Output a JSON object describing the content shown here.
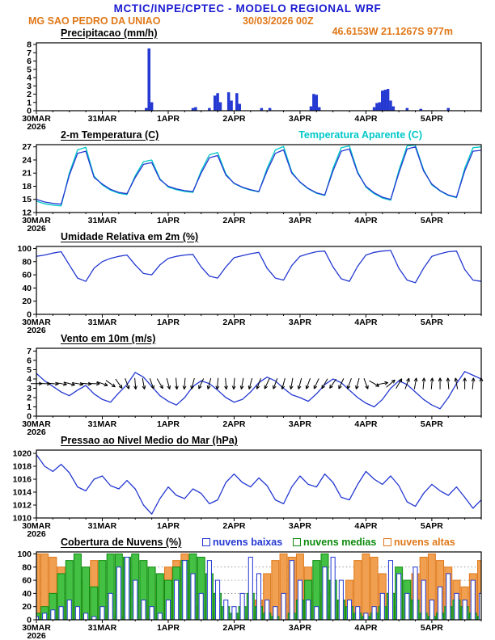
{
  "header": {
    "title": "MCTIC/INPE/CPTEC - MODELO REGIONAL WRF",
    "station": "MG SAO PEDRO DA UNIAO",
    "run_datetime": "30/03/2026 00Z",
    "location": "46.6153W 21.1267S 977m",
    "colors": {
      "title": "#1b1bd1",
      "accent": "#e07818"
    }
  },
  "time_axis": {
    "tick_labels": [
      "30MAR",
      "31MAR",
      "1APR",
      "2APR",
      "3APR",
      "4APR",
      "5APR"
    ],
    "year_label": "2026",
    "hours_total": 162,
    "step_hours": 3
  },
  "chart_data": [
    {
      "id": "precip",
      "type": "bar",
      "title": "Precipitacao (mm/h)",
      "ylabel": "mm/h",
      "ylim": [
        0,
        8.2
      ],
      "yticks": [
        0,
        1,
        2,
        3,
        4,
        5,
        6,
        7,
        8
      ],
      "bar_color": "#2438d2",
      "hours": [
        40,
        41,
        42,
        57,
        58,
        63,
        65,
        66,
        67,
        70,
        71,
        73,
        74,
        82,
        85,
        100,
        101,
        102,
        103,
        123,
        124,
        125,
        126,
        127,
        128,
        129,
        130,
        135,
        140,
        150
      ],
      "values": [
        0.3,
        7.5,
        1.0,
        0.3,
        0.4,
        0.3,
        1.8,
        2.1,
        1.0,
        2.2,
        1.2,
        2.1,
        0.8,
        0.3,
        0.3,
        0.5,
        2.0,
        1.9,
        0.4,
        0.4,
        0.9,
        1.0,
        2.4,
        2.5,
        2.6,
        1.2,
        0.5,
        0.3,
        0.2,
        0.3
      ]
    },
    {
      "id": "temp",
      "type": "line",
      "title": "2-m Temperatura (C)",
      "legend": {
        "label": "Temperatura Aparente (C)",
        "color": "#00c8c8"
      },
      "ylim": [
        12,
        27.5
      ],
      "yticks": [
        12,
        15,
        18,
        21,
        24,
        27
      ],
      "series": [
        {
          "name": "2-m Temperatura (C)",
          "color": "#2438d2",
          "values": [
            15.0,
            14.4,
            14.1,
            13.9,
            20.5,
            25.5,
            26.0,
            20.0,
            18.5,
            17.3,
            16.6,
            16.3,
            20.0,
            23.0,
            23.4,
            19.5,
            18.0,
            17.4,
            17.0,
            16.8,
            21.0,
            24.5,
            25.0,
            20.5,
            18.7,
            17.8,
            17.2,
            16.8,
            21.5,
            25.5,
            26.3,
            21.0,
            19.0,
            17.5,
            16.5,
            16.0,
            21.5,
            26.0,
            26.5,
            21.0,
            18.0,
            16.5,
            15.5,
            15.0,
            21.0,
            26.5,
            27.0,
            21.5,
            18.5,
            17.0,
            16.0,
            15.5,
            21.5,
            26.0,
            26.2
          ]
        },
        {
          "name": "Temperatura Aparente (C)",
          "color": "#00c8c8",
          "values": [
            14.6,
            14.0,
            13.7,
            13.5,
            21.0,
            26.3,
            26.9,
            20.3,
            18.3,
            17.1,
            16.4,
            16.1,
            20.4,
            23.6,
            24.0,
            19.7,
            17.8,
            17.2,
            16.8,
            16.6,
            21.5,
            25.2,
            25.7,
            20.8,
            18.6,
            17.7,
            17.1,
            16.7,
            22.1,
            26.3,
            27.1,
            21.3,
            18.9,
            17.4,
            16.4,
            15.9,
            22.1,
            26.8,
            27.2,
            21.3,
            17.8,
            16.3,
            15.3,
            14.8,
            21.6,
            27.2,
            27.4,
            21.8,
            18.3,
            16.9,
            15.9,
            15.4,
            22.1,
            26.8,
            27.0
          ]
        }
      ]
    },
    {
      "id": "rh",
      "type": "line",
      "title": "Umidade Relativa em 2m (%)",
      "ylim": [
        0,
        103
      ],
      "yticks": [
        0,
        20,
        40,
        60,
        80,
        100
      ],
      "series": [
        {
          "name": "Umidade Relativa",
          "color": "#2438d2",
          "values": [
            88,
            90,
            93,
            95,
            75,
            55,
            50,
            70,
            80,
            85,
            88,
            90,
            75,
            62,
            60,
            75,
            85,
            88,
            90,
            91,
            72,
            58,
            55,
            72,
            86,
            89,
            92,
            94,
            70,
            55,
            52,
            74,
            88,
            92,
            95,
            96,
            72,
            54,
            50,
            73,
            90,
            94,
            96,
            97,
            70,
            52,
            48,
            70,
            88,
            92,
            95,
            96,
            68,
            52,
            50
          ]
        }
      ]
    },
    {
      "id": "wind",
      "type": "line",
      "title": "Vento em 10m (m/s)",
      "ylim": [
        0,
        7.3
      ],
      "yticks": [
        0,
        1,
        2,
        3,
        4,
        5,
        6,
        7
      ],
      "series": [
        {
          "name": "Velocidade do vento",
          "color": "#2438d2",
          "values": [
            4.6,
            3.8,
            3.2,
            2.6,
            2.2,
            2.8,
            3.3,
            2.4,
            1.8,
            1.5,
            2.5,
            3.4,
            4.7,
            4.2,
            3.2,
            2.2,
            1.6,
            1.2,
            2.0,
            3.2,
            3.8,
            3.5,
            2.8,
            2.0,
            1.5,
            1.8,
            2.6,
            3.6,
            4.2,
            3.8,
            3.0,
            2.3,
            2.0,
            1.6,
            2.4,
            3.4,
            4.0,
            3.6,
            2.8,
            2.0,
            1.4,
            1.0,
            1.8,
            3.0,
            3.8,
            3.4,
            2.6,
            1.8,
            1.2,
            0.8,
            2.0,
            3.5,
            4.8,
            4.4,
            4.0
          ]
        }
      ],
      "arrows": {
        "color": "#000000",
        "y_value": 3.5,
        "directions_deg": [
          90,
          92,
          95,
          100,
          105,
          100,
          95,
          92,
          110,
          125,
          145,
          160,
          175,
          170,
          160,
          150,
          165,
          175,
          185,
          195,
          205,
          195,
          185,
          175,
          185,
          190,
          195,
          200,
          205,
          200,
          195,
          190,
          195,
          200,
          205,
          210,
          215,
          205,
          200,
          195,
          160,
          120,
          80,
          50,
          30,
          20,
          10,
          5,
          5,
          0,
          355,
          350,
          0,
          5,
          0
        ]
      }
    },
    {
      "id": "pres",
      "type": "line",
      "title": "Pressao ao Nivel Medio do Mar (hPa)",
      "ylim": [
        1010,
        1020.5
      ],
      "yticks": [
        1010,
        1012,
        1014,
        1016,
        1018,
        1020
      ],
      "series": [
        {
          "name": "Pressao ao nivel do mar",
          "color": "#2438d2",
          "values": [
            1019.8,
            1018.0,
            1017.2,
            1018.3,
            1017.0,
            1014.8,
            1014.2,
            1016.0,
            1016.5,
            1015.0,
            1014.5,
            1015.8,
            1014.5,
            1012.0,
            1010.6,
            1013.0,
            1014.8,
            1013.5,
            1013.0,
            1014.5,
            1013.8,
            1012.2,
            1012.8,
            1015.5,
            1016.8,
            1015.5,
            1014.8,
            1016.2,
            1015.0,
            1012.8,
            1012.2,
            1014.8,
            1016.5,
            1015.2,
            1014.8,
            1016.8,
            1015.5,
            1013.2,
            1012.8,
            1015.2,
            1017.2,
            1016.0,
            1015.2,
            1016.5,
            1015.0,
            1012.5,
            1011.8,
            1013.8,
            1015.2,
            1014.2,
            1013.5,
            1014.8,
            1013.2,
            1011.5,
            1012.8
          ]
        }
      ]
    },
    {
      "id": "clouds",
      "type": "bar",
      "title": "Cobertura de Nuvens (%)",
      "ylim": [
        0,
        103
      ],
      "yticks": [
        0,
        20,
        40,
        60,
        80,
        100
      ],
      "grid": true,
      "legend": [
        {
          "label": "nuvens baixas",
          "color": "#2438d2"
        },
        {
          "label": "nuvens medias",
          "color": "#0c8a0c"
        },
        {
          "label": "nuvens altas",
          "color": "#e07818"
        }
      ],
      "series": [
        {
          "name": "nuvens altas",
          "color": "#e07818",
          "fill": "#f0a050",
          "values": [
            100,
            100,
            95,
            80,
            30,
            10,
            60,
            90,
            20,
            10,
            5,
            0,
            0,
            10,
            30,
            60,
            80,
            90,
            100,
            60,
            20,
            10,
            5,
            0,
            0,
            5,
            10,
            30,
            70,
            90,
            100,
            95,
            100,
            80,
            40,
            20,
            10,
            30,
            60,
            90,
            100,
            95,
            70,
            40,
            20,
            40,
            70,
            95,
            100,
            90,
            80,
            60,
            50,
            70,
            90
          ]
        },
        {
          "name": "nuvens medias",
          "color": "#0c8a0c",
          "fill": "#44c144",
          "values": [
            10,
            20,
            40,
            70,
            90,
            100,
            80,
            50,
            90,
            100,
            100,
            95,
            100,
            90,
            80,
            70,
            60,
            80,
            90,
            100,
            95,
            70,
            40,
            20,
            10,
            20,
            40,
            20,
            10,
            5,
            0,
            10,
            30,
            60,
            90,
            100,
            60,
            30,
            20,
            10,
            5,
            10,
            20,
            40,
            80,
            60,
            30,
            10,
            5,
            10,
            20,
            30,
            20,
            10,
            5
          ]
        },
        {
          "name": "nuvens baixas",
          "color": "#2438d2",
          "fill": "#ffffff",
          "hollow": true,
          "values": [
            5,
            10,
            15,
            20,
            30,
            20,
            10,
            5,
            20,
            40,
            80,
            95,
            60,
            30,
            20,
            10,
            30,
            60,
            90,
            70,
            40,
            90,
            60,
            30,
            20,
            40,
            95,
            70,
            30,
            20,
            40,
            90,
            60,
            30,
            20,
            80,
            95,
            60,
            30,
            20,
            10,
            20,
            40,
            90,
            70,
            40,
            80,
            60,
            30,
            50,
            70,
            40,
            30,
            60,
            40
          ]
        }
      ]
    }
  ]
}
